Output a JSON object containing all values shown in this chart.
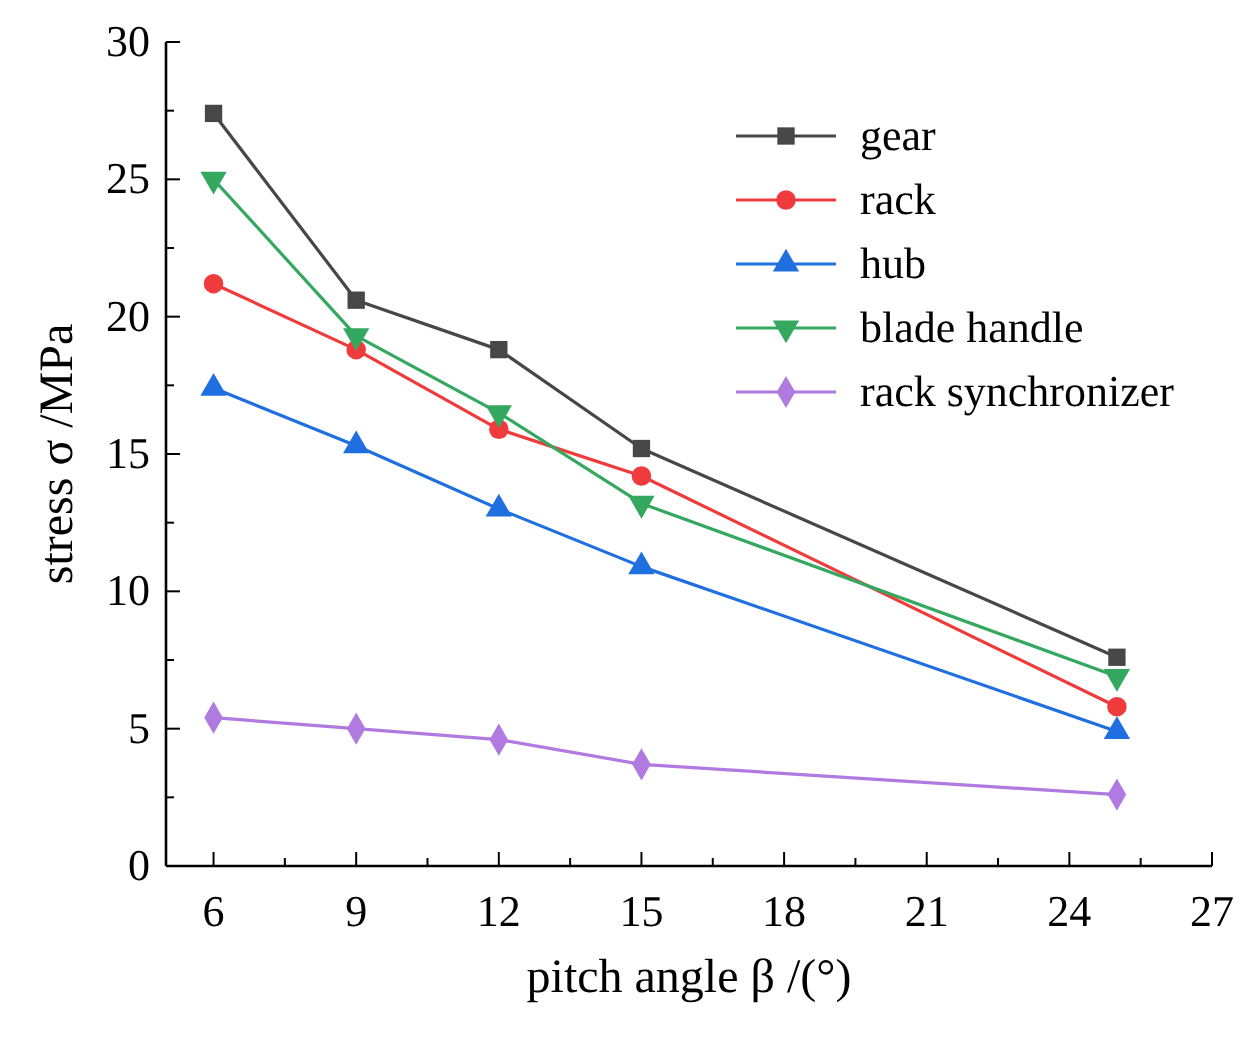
{
  "chart_data": {
    "type": "line",
    "xlabel": "pitch angle β /(°)",
    "ylabel": "stress σ /MPa",
    "x": [
      6,
      9,
      12,
      15,
      25
    ],
    "xlim": [
      5,
      27
    ],
    "xticks": [
      6,
      {
        "value": 7.5,
        "label": null
      },
      9,
      {
        "value": 10.5,
        "label": null
      },
      12,
      {
        "value": 13.5,
        "label": null
      },
      15,
      {
        "value": 16.5,
        "label": null
      },
      18,
      {
        "value": 19.5,
        "label": null
      },
      21,
      {
        "value": 22.5,
        "label": null
      },
      24,
      {
        "value": 25.5,
        "label": null
      },
      27
    ],
    "ylim": [
      0,
      30
    ],
    "yticks": [
      0,
      {
        "value": 2.5,
        "label": null
      },
      5,
      {
        "value": 7.5,
        "label": null
      },
      10,
      {
        "value": 12.5,
        "label": null
      },
      15,
      {
        "value": 17.5,
        "label": null
      },
      20,
      {
        "value": 22.5,
        "label": null
      },
      25,
      {
        "value": 27.5,
        "label": null
      },
      30
    ],
    "grid": false,
    "legend": "top right",
    "line_style": "solid",
    "series": [
      {
        "name": "gear",
        "color": "#474747",
        "marker": "square",
        "values": [
          27.4,
          20.6,
          18.8,
          15.2,
          7.6
        ]
      },
      {
        "name": "rack",
        "color": "#ef3b3b",
        "marker": "circle",
        "values": [
          21.2,
          18.8,
          15.9,
          14.2,
          5.8
        ]
      },
      {
        "name": "hub",
        "color": "#1f6fe0",
        "marker": "triangle",
        "values": [
          17.4,
          15.3,
          13.0,
          10.9,
          4.9
        ]
      },
      {
        "name": "blade handle",
        "color": "#35a860",
        "marker": "triangle-down",
        "values": [
          25.0,
          19.3,
          16.5,
          13.2,
          6.9
        ]
      },
      {
        "name": "rack synchronizer",
        "color": "#b07ae0",
        "marker": "diamond",
        "values": [
          5.4,
          5.0,
          4.6,
          3.7,
          2.6
        ]
      }
    ]
  }
}
